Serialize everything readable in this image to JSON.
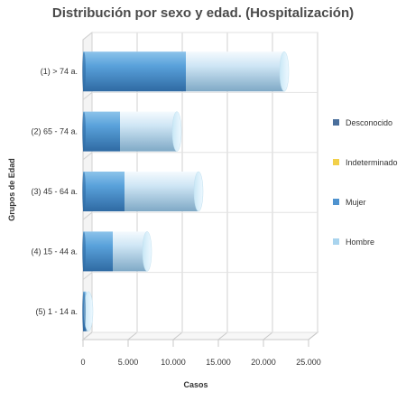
{
  "chart_data": {
    "type": "bar",
    "orientation": "horizontal",
    "stacked": true,
    "style": "3d-cylinder",
    "title": "Distribución por sexo y edad. (Hospitalización)",
    "xlabel": "Casos",
    "ylabel": "Grupos de Edad",
    "xlim": [
      0,
      25000
    ],
    "x_ticks": [
      0,
      5000,
      10000,
      15000,
      20000,
      25000
    ],
    "x_tick_labels": [
      "0",
      "5.000",
      "10.000",
      "15.000",
      "20.000",
      "25.000"
    ],
    "grid": true,
    "legend_position": "right",
    "categories": [
      "(1) > 74 a.",
      "(2) 65 - 74 a.",
      "(3) 45 - 64 a.",
      "(4) 15 - 44 a.",
      "(5) 1 - 14 a."
    ],
    "series": [
      {
        "name": "Desconocido",
        "color": "#4a6f9c",
        "values": [
          0,
          0,
          0,
          0,
          0
        ]
      },
      {
        "name": "Indeterminado",
        "color": "#f2d04a",
        "values": [
          0,
          0,
          0,
          0,
          0
        ]
      },
      {
        "name": "Mujer",
        "color": "#4f93cf",
        "values": [
          11400,
          4100,
          4600,
          3300,
          350
        ]
      },
      {
        "name": "Hombre",
        "color": "#a9d4ee",
        "values": [
          10900,
          6300,
          8200,
          3800,
          250
        ]
      }
    ]
  }
}
